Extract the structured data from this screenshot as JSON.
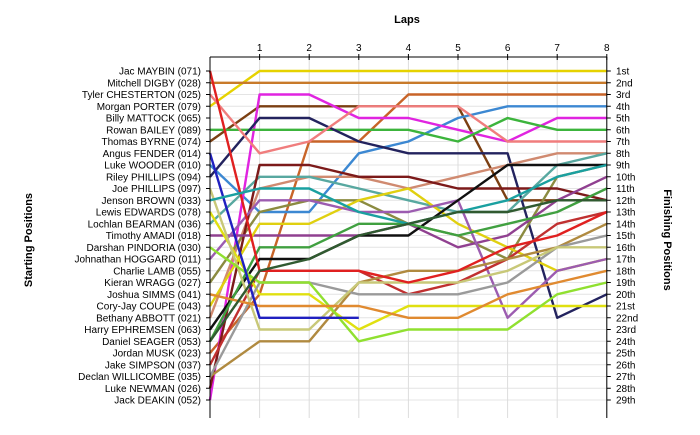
{
  "chart_data": {
    "type": "line",
    "title": "Laps",
    "xlabel": "Laps",
    "ylabel_left": "Starting Positions",
    "ylabel_right": "Finishing Positions",
    "x": [
      0,
      1,
      2,
      3,
      4,
      5,
      6,
      7,
      8
    ],
    "x_tick_labels": [
      "1",
      "2",
      "3",
      "4",
      "5",
      "6",
      "7",
      "8"
    ],
    "y_axis": "position (1 = top)",
    "y_range": [
      1,
      29
    ],
    "grid": true,
    "starting_labels": [
      "Jac MAYBIN (071)",
      "Mitchell DIGBY (028)",
      "Tyler CHESTERTON (025)",
      "Morgan PORTER (079)",
      "Billy MATTOCK (065)",
      "Rowan BAILEY (089)",
      "Thomas BYRNE (074)",
      "Angus FENDER (014)",
      "Luke WOODER (010)",
      "Riley PHILLIPS (094)",
      "Joe PHILLIPS (097)",
      "Jenson BROWN (033)",
      "Lewis EDWARDS (078)",
      "Lochlan BEARMAN (036)",
      "Timothy AMADI (018)",
      "Darshan PINDORIA (030)",
      "Johnathan HOGGARD (011)",
      "Charlie LAMB (055)",
      "Kieran WRAGG (027)",
      "Joshua SIMMS (041)",
      "Cory-Jay COUPE (043)",
      "Bethany ABBOTT (021)",
      "Harry EPHREMSEN (063)",
      "Daniel SEAGER (053)",
      "Jordan MUSK (023)",
      "Jake SIMPSON (037)",
      "Declan WILLICOMBE (035)",
      "Luke NEWMAN (026)",
      "Jack DEAKIN (052)"
    ],
    "finishing_labels": [
      "1st",
      "2nd",
      "3rd",
      "4th",
      "5th",
      "6th",
      "7th",
      "8th",
      "9th",
      "10th",
      "11th",
      "12th",
      "13th",
      "14th",
      "15th",
      "16th",
      "17th",
      "18th",
      "19th",
      "20th",
      "21st",
      "22nd",
      "23rd",
      "24th",
      "25th",
      "26th",
      "27th",
      "28th",
      "29th"
    ],
    "series": [
      {
        "color": "#e6d200",
        "positions": [
          4,
          1,
          1,
          1,
          1,
          1,
          1,
          1,
          1
        ]
      },
      {
        "color": "#c87a2a",
        "positions": [
          2,
          2,
          2,
          2,
          2,
          2,
          2,
          2,
          2
        ]
      },
      {
        "color": "#c86428",
        "positions": [
          25,
          20,
          7,
          7,
          3,
          3,
          3,
          3,
          3
        ]
      },
      {
        "color": "#7b3f12",
        "positions": [
          7,
          4,
          4,
          4,
          4,
          4,
          12,
          12,
          12
        ]
      },
      {
        "color": "#3c88d2",
        "positions": [
          9,
          13,
          13,
          8,
          7,
          5,
          4,
          4,
          4
        ]
      },
      {
        "color": "#e024e0",
        "positions": [
          29,
          3,
          3,
          5,
          5,
          6,
          7,
          5,
          5
        ]
      },
      {
        "color": "#3cb43c",
        "positions": [
          6,
          6,
          6,
          6,
          6,
          7,
          5,
          6,
          6
        ]
      },
      {
        "color": "#23235e",
        "positions": [
          10,
          5,
          5,
          7,
          8,
          8,
          8,
          22,
          20
        ]
      },
      {
        "color": "#f07d7d",
        "positions": [
          3,
          8,
          7,
          4,
          4,
          4,
          7,
          7,
          7
        ]
      },
      {
        "color": "#d08a70",
        "positions": [
          22,
          11,
          10,
          10,
          11,
          10,
          9,
          8,
          8
        ]
      },
      {
        "color": "#58a8a0",
        "positions": [
          14,
          10,
          10,
          11,
          12,
          13,
          13,
          9,
          8
        ]
      },
      {
        "color": "#8b8b40",
        "positions": [
          19,
          13,
          12,
          12,
          14,
          15,
          17,
          10,
          9
        ]
      },
      {
        "color": "#7c1a1a",
        "positions": [
          28,
          9,
          9,
          10,
          10,
          11,
          11,
          11,
          12
        ]
      },
      {
        "color": "#904090",
        "positions": [
          15,
          15,
          15,
          15,
          14,
          16,
          15,
          12,
          10
        ]
      },
      {
        "color": "#e0d010",
        "positions": [
          21,
          14,
          14,
          12,
          11,
          14,
          16,
          18,
          17
        ]
      },
      {
        "color": "#9c5cb0",
        "positions": [
          17,
          12,
          12,
          13,
          13,
          12,
          22,
          18,
          17
        ]
      },
      {
        "color": "#101010",
        "positions": [
          23,
          17,
          17,
          15,
          15,
          12,
          9,
          9,
          9
        ]
      },
      {
        "color": "#c03030",
        "positions": [
          26,
          18,
          18,
          18,
          20,
          19,
          17,
          14,
          13
        ]
      },
      {
        "color": "#40a040",
        "positions": [
          24,
          16,
          16,
          14,
          14,
          15,
          14,
          13,
          11
        ]
      },
      {
        "color": "#b08a40",
        "positions": [
          27,
          24,
          24,
          19,
          18,
          18,
          17,
          16,
          14
        ]
      },
      {
        "color": "#e0e010",
        "positions": [
          13,
          20,
          20,
          23,
          21,
          21,
          21,
          21,
          21
        ]
      },
      {
        "color": "#9a9a9a",
        "positions": [
          27,
          19,
          19,
          20,
          20,
          20,
          19,
          16,
          15
        ]
      },
      {
        "color": "#c8c878",
        "positions": [
          11,
          23,
          23,
          19,
          19,
          19,
          18,
          16,
          16
        ]
      },
      {
        "color": "#90e030",
        "positions": [
          16,
          19,
          19,
          24,
          23,
          23,
          23,
          20,
          19
        ]
      },
      {
        "color": "#e08a30",
        "positions": [
          20,
          21,
          21,
          21,
          22,
          22,
          20,
          19,
          18
        ]
      },
      {
        "color": "#2020c0",
        "positions": [
          8,
          22,
          22,
          22,
          null,
          null,
          null,
          null,
          null
        ]
      },
      {
        "color": "#e02020",
        "positions": [
          1,
          18,
          18,
          18,
          19,
          18,
          16,
          15,
          13
        ]
      },
      {
        "color": "#1aa0a0",
        "positions": [
          12,
          11,
          11,
          13,
          14,
          13,
          12,
          10,
          9
        ]
      },
      {
        "color": "#305a30",
        "positions": [
          24,
          18,
          17,
          15,
          14,
          13,
          13,
          12,
          12
        ]
      }
    ]
  }
}
